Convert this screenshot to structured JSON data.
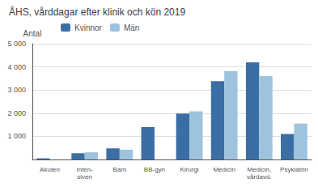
{
  "chart_data": {
    "type": "bar",
    "title": "ÅHS, vårddagar efter klinik och kön 2019",
    "ylabel": "Antal",
    "categories": [
      "Akuten",
      "Inten-\nsiven",
      "Barn",
      "BB-gyn",
      "Kirurgi",
      "Medicin",
      "Medicin,\nvårdavd.",
      "Psykiatrin"
    ],
    "series": [
      {
        "name": "Kvinnor",
        "color": "#3B6EA5",
        "values": [
          50,
          270,
          480,
          1400,
          1980,
          3380,
          4200,
          1100
        ]
      },
      {
        "name": "Män",
        "color": "#9DC3DE",
        "values": [
          0,
          310,
          420,
          0,
          2080,
          3820,
          3600,
          1550
        ]
      }
    ],
    "ylim": [
      0,
      5000
    ],
    "yticks": [
      {
        "value": 0,
        "label": ""
      },
      {
        "value": 1000,
        "label": "1 000"
      },
      {
        "value": 2000,
        "label": "2 000"
      },
      {
        "value": 3000,
        "label": "3 000"
      },
      {
        "value": 4000,
        "label": "4 000"
      },
      {
        "value": 5000,
        "label": "5 000"
      }
    ],
    "grid": true,
    "legend": "upper left"
  }
}
